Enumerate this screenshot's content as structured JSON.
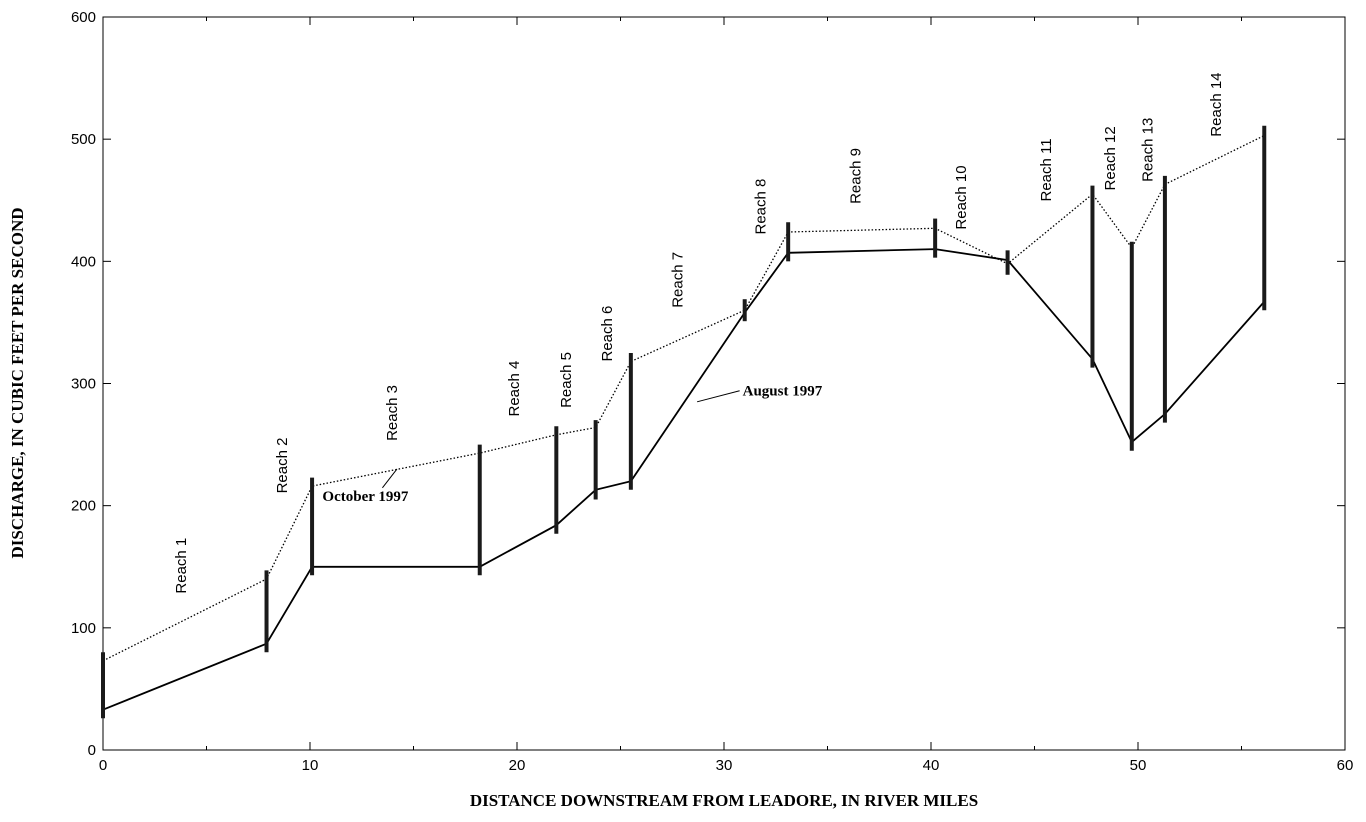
{
  "chart_data": {
    "type": "line",
    "xlabel": "DISTANCE DOWNSTREAM FROM LEADORE, IN RIVER MILES",
    "ylabel": "DISCHARGE, IN CUBIC FEET PER SECOND",
    "xlim": [
      0,
      60
    ],
    "ylim": [
      0,
      600
    ],
    "x_ticks": [
      0,
      10,
      20,
      30,
      40,
      50,
      60
    ],
    "y_ticks": [
      0,
      100,
      200,
      300,
      400,
      500,
      600
    ],
    "grid": false,
    "series": [
      {
        "name": "October 1997",
        "style": "dotted",
        "x": [
          0,
          7.9,
          10.1,
          18.2,
          21.9,
          23.8,
          25.5,
          31.0,
          33.1,
          40.2,
          43.7,
          47.8,
          49.7,
          51.3,
          56.1
        ],
        "y": [
          73,
          140,
          216,
          243,
          258,
          264,
          318,
          360,
          424,
          427,
          398,
          455,
          411,
          463,
          503
        ]
      },
      {
        "name": "August 1997",
        "style": "solid",
        "x": [
          0,
          7.9,
          10.1,
          18.2,
          21.9,
          23.8,
          25.5,
          31.0,
          33.1,
          40.2,
          43.7,
          47.8,
          49.7,
          51.3,
          56.1
        ],
        "y": [
          33,
          87,
          150,
          150,
          184,
          213,
          220,
          358,
          407,
          410,
          401,
          320,
          252,
          275,
          367
        ]
      }
    ],
    "error_bars": [
      {
        "x": 0,
        "low": 26,
        "high": 80
      },
      {
        "x": 7.9,
        "low": 80,
        "high": 147
      },
      {
        "x": 10.1,
        "low": 143,
        "high": 223
      },
      {
        "x": 18.2,
        "low": 143,
        "high": 250
      },
      {
        "x": 21.9,
        "low": 177,
        "high": 265
      },
      {
        "x": 23.8,
        "low": 205,
        "high": 270
      },
      {
        "x": 25.5,
        "low": 213,
        "high": 325
      },
      {
        "x": 31.0,
        "low": 351,
        "high": 369
      },
      {
        "x": 33.1,
        "low": 400,
        "high": 432
      },
      {
        "x": 40.2,
        "low": 403,
        "high": 435
      },
      {
        "x": 43.7,
        "low": 389,
        "high": 409
      },
      {
        "x": 47.8,
        "low": 313,
        "high": 462
      },
      {
        "x": 49.7,
        "low": 245,
        "high": 416
      },
      {
        "x": 51.3,
        "low": 268,
        "high": 470
      },
      {
        "x": 56.1,
        "low": 360,
        "high": 511
      }
    ],
    "reach_labels": [
      {
        "text": "Reach 1",
        "x": 4.0,
        "y": 128
      },
      {
        "text": "Reach 2",
        "x": 8.9,
        "y": 210
      },
      {
        "text": "Reach 3",
        "x": 14.2,
        "y": 253
      },
      {
        "text": "Reach 4",
        "x": 20.1,
        "y": 273
      },
      {
        "text": "Reach 5",
        "x": 22.6,
        "y": 280
      },
      {
        "text": "Reach 6",
        "x": 24.6,
        "y": 318
      },
      {
        "text": "Reach 7",
        "x": 28.0,
        "y": 362
      },
      {
        "text": "Reach 8",
        "x": 32.0,
        "y": 422
      },
      {
        "text": "Reach 9",
        "x": 36.6,
        "y": 447
      },
      {
        "text": "Reach 10",
        "x": 41.7,
        "y": 426
      },
      {
        "text": "Reach 11",
        "x": 45.8,
        "y": 449
      },
      {
        "text": "Reach 12",
        "x": 48.9,
        "y": 458
      },
      {
        "text": "Reach 13",
        "x": 50.7,
        "y": 465
      },
      {
        "text": "Reach 14",
        "x": 54.0,
        "y": 502
      }
    ],
    "annotations": [
      {
        "text": "October 1997",
        "x": 10.6,
        "y": 204,
        "pointer_x": 14.2,
        "pointer_y": 230
      },
      {
        "text": "August 1997",
        "x": 30.9,
        "y": 290,
        "pointer_x": 28.7,
        "pointer_y": 285
      }
    ]
  }
}
